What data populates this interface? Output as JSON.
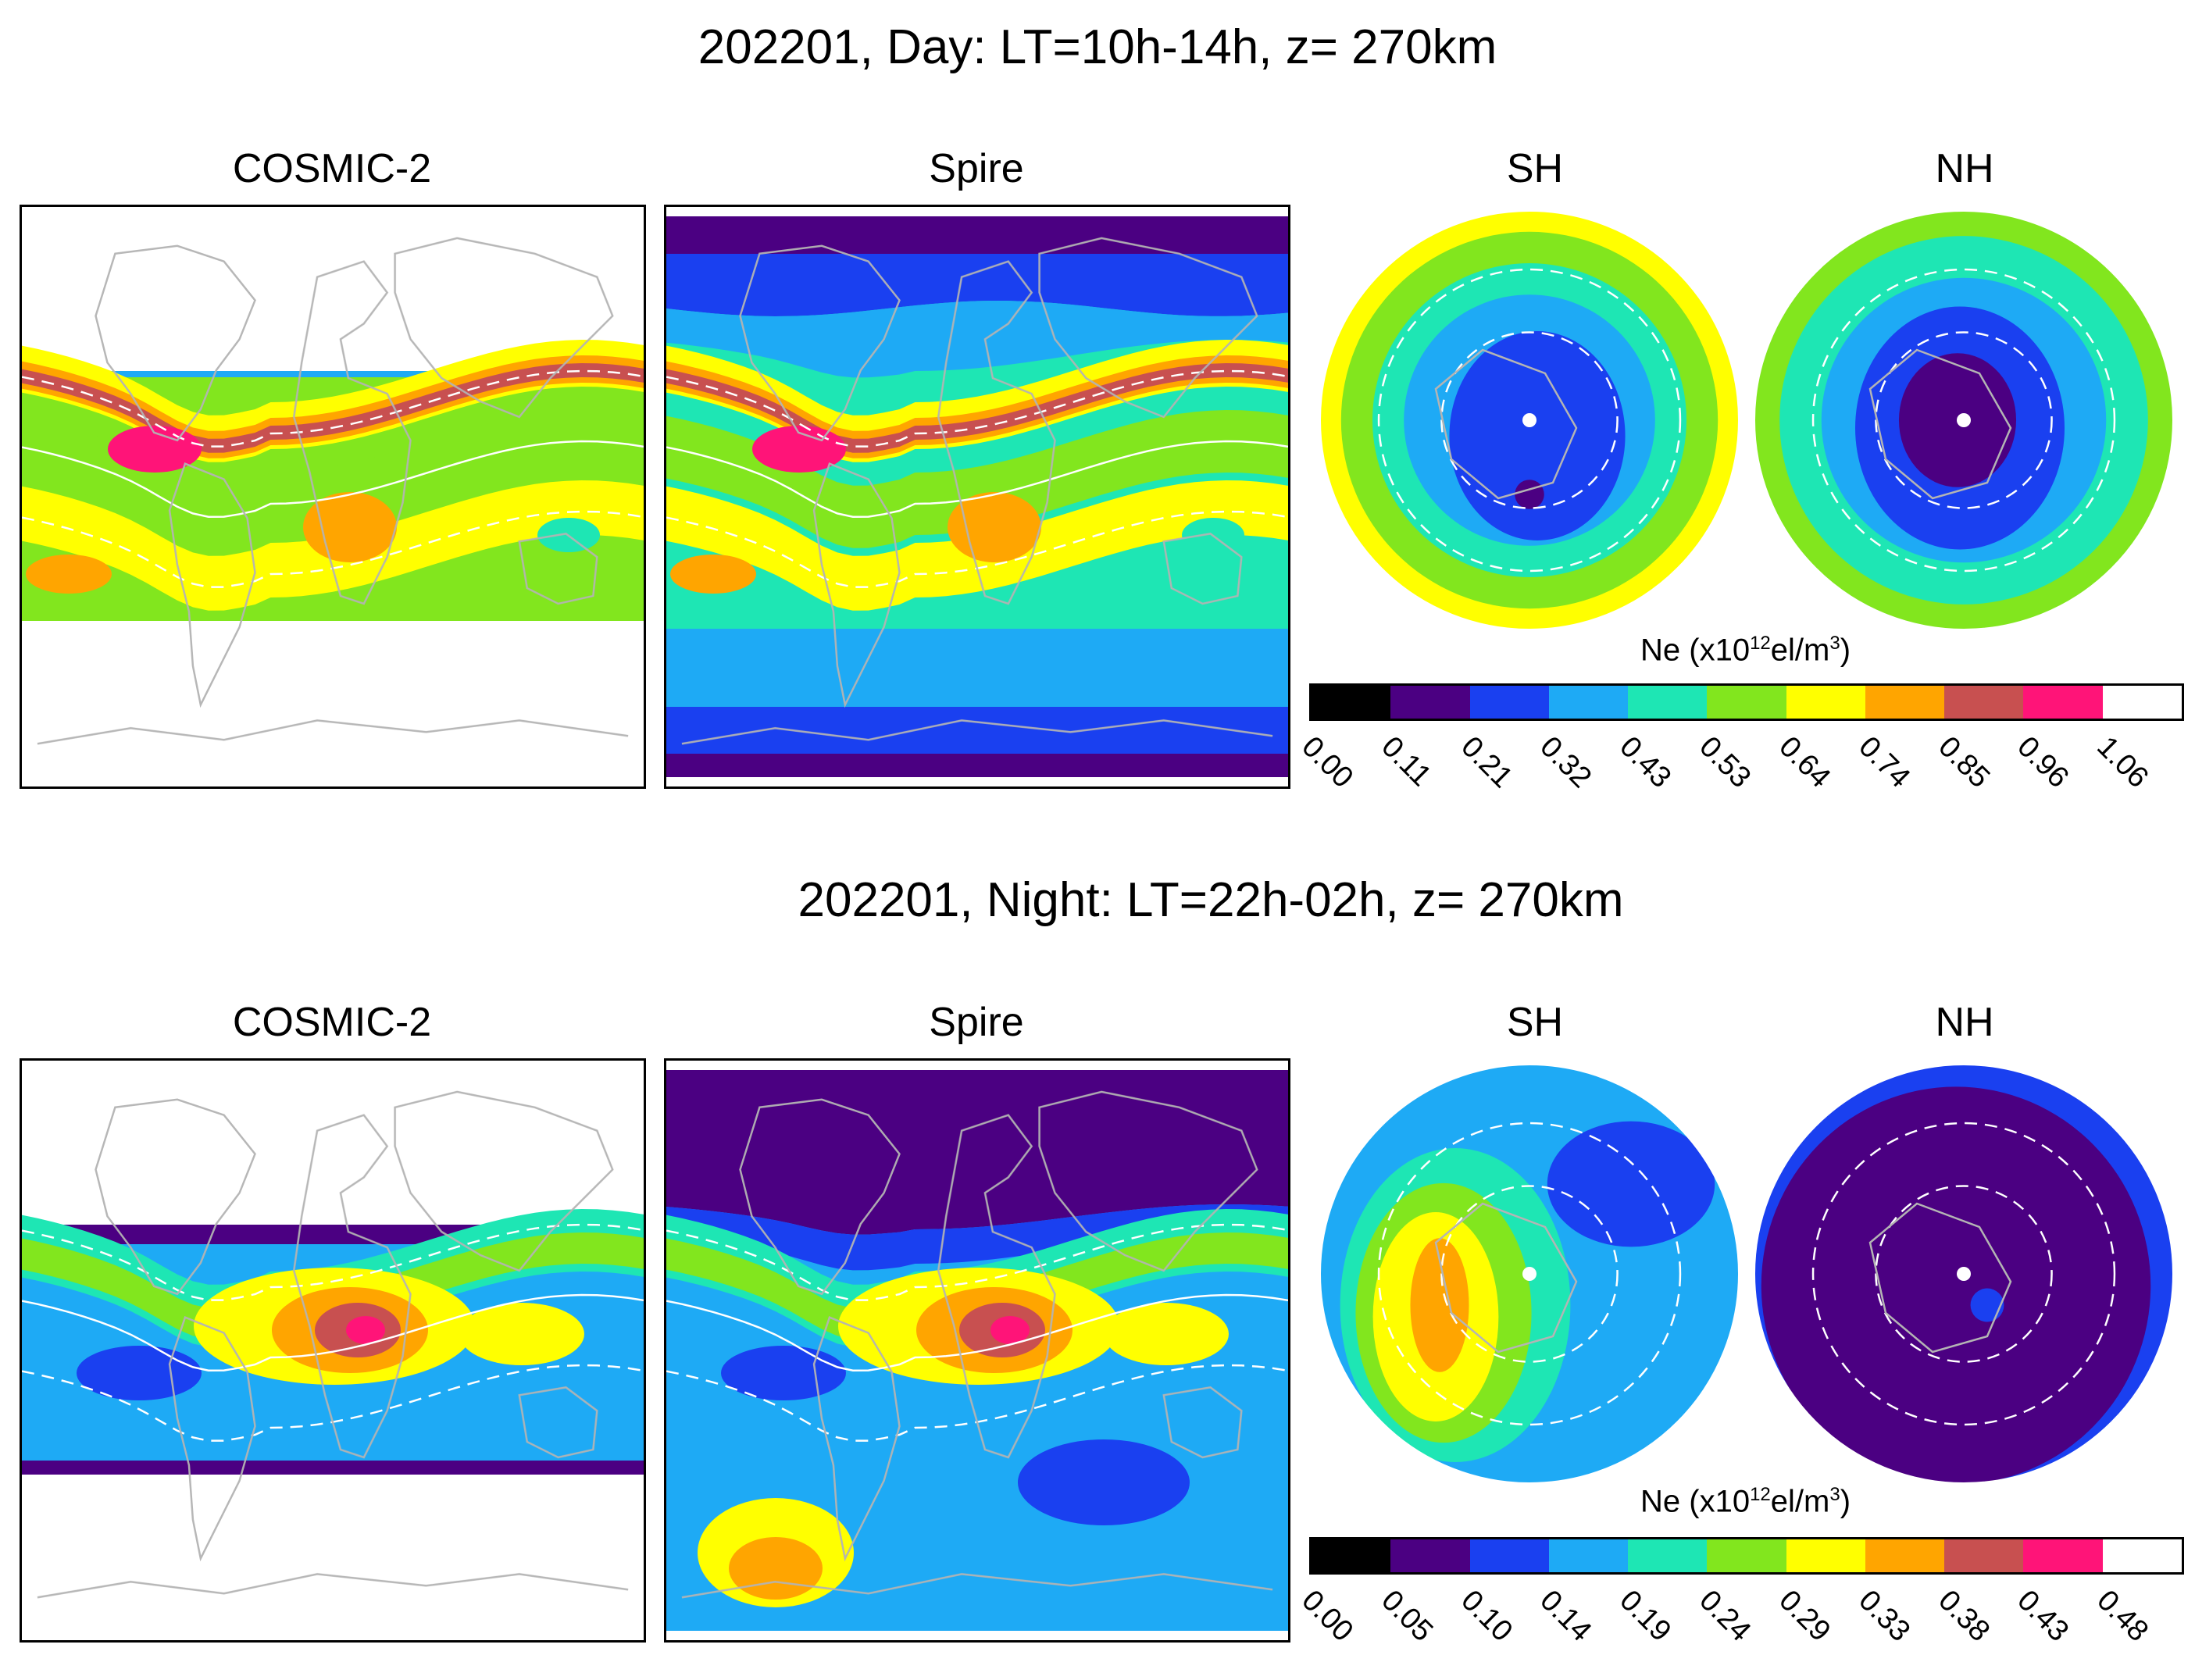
{
  "palette": [
    "#000000",
    "#4b0082",
    "#1a40f0",
    "#1eaaf5",
    "#1ee6b4",
    "#82e61e",
    "#ffff00",
    "#ffa500",
    "#c85050",
    "#ff1478",
    "#ffffff"
  ],
  "rows": [
    {
      "title": "202201, Day: LT=10h-14h, z= 270km",
      "cosmic_label": "COSMIC-2",
      "spire_label": "Spire",
      "sh_label": "SH",
      "nh_label": "NH",
      "colorbar_label_prefix": "Ne (x10",
      "colorbar_label_exp": "12",
      "colorbar_label_mid": "el/m",
      "colorbar_label_exp2": "3",
      "colorbar_label_suffix": ")",
      "ticks": [
        "0.00",
        "0.11",
        "0.21",
        "0.32",
        "0.43",
        "0.53",
        "0.64",
        "0.74",
        "0.85",
        "0.96",
        "1.06"
      ]
    },
    {
      "title": "202201, Night: LT=22h-02h, z= 270km",
      "cosmic_label": "COSMIC-2",
      "spire_label": "Spire",
      "sh_label": "SH",
      "nh_label": "NH",
      "colorbar_label_prefix": "Ne (x10",
      "colorbar_label_exp": "12",
      "colorbar_label_mid": "el/m",
      "colorbar_label_exp2": "3",
      "colorbar_label_suffix": ")",
      "ticks": [
        "0.00",
        "0.05",
        "0.10",
        "0.14",
        "0.19",
        "0.24",
        "0.29",
        "0.33",
        "0.38",
        "0.43",
        "0.48"
      ]
    }
  ],
  "chart_data": [
    {
      "type": "heatmap",
      "title": "202201, Day: LT=10h-14h, z= 270km",
      "panels": [
        "COSMIC-2",
        "Spire",
        "SH",
        "NH"
      ],
      "colorbar": {
        "label": "Ne (x10^12 el/m^3)",
        "ticks": [
          0.0,
          0.11,
          0.21,
          0.32,
          0.43,
          0.53,
          0.64,
          0.74,
          0.85,
          0.96,
          1.06
        ],
        "range": [
          0.0,
          1.06
        ]
      },
      "features": {
        "COSMIC-2": "equatorial anomaly crests peak near 0.96 over South America; latitudes poleward of about ±40° not covered",
        "Spire": "global coverage; crests near 0.96 over South America; polar regions 0.11-0.21",
        "SH": "polar-cap minimum about 0.11-0.21, rising to 0.64 at mid-latitudes",
        "NH": "polar minimum about 0.11 near pole, rising to 0.53-0.64 at lower latitudes"
      }
    },
    {
      "type": "heatmap",
      "title": "202201, Night: LT=22h-02h, z= 270km",
      "panels": [
        "COSMIC-2",
        "Spire",
        "SH",
        "NH"
      ],
      "colorbar": {
        "label": "Ne (x10^12 el/m^3)",
        "ticks": [
          0.0,
          0.05,
          0.1,
          0.14,
          0.19,
          0.24,
          0.29,
          0.33,
          0.38,
          0.43,
          0.48
        ],
        "range": [
          0.0,
          0.48
        ]
      },
      "features": {
        "COSMIC-2": "peak about 0.43 over Africa; low 0.05-0.10 at ±40° band edges",
        "Spire": "peak about 0.43 over Africa; northern mid/high latitudes about 0.05",
        "SH": "enhancement 0.29-0.33 near the Weddell Sea region, background 0.14-0.19",
        "NH": "mostly 0.05 across the polar region"
      }
    }
  ]
}
